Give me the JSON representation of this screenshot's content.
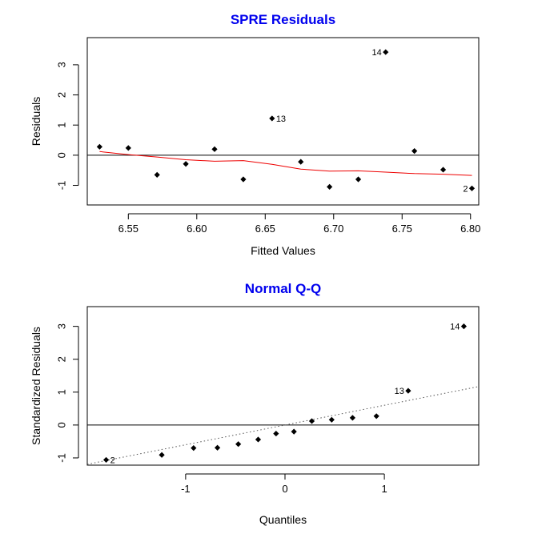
{
  "colors": {
    "title": "#0000ee",
    "smooth_line": "#ee0000",
    "points": "#000000",
    "reference_line": "#555555"
  },
  "chart_data": [
    {
      "type": "scatter",
      "title": "SPRE Residuals",
      "xlabel": "Fitted Values",
      "ylabel": "Residuals",
      "xlim": [
        6.52,
        6.806
      ],
      "ylim": [
        -1.65,
        3.9
      ],
      "xticks": [
        6.55,
        6.6,
        6.65,
        6.7,
        6.75,
        6.8
      ],
      "xtick_labels": [
        "6.55",
        "6.60",
        "6.65",
        "6.70",
        "6.75",
        "6.80"
      ],
      "yticks": [
        -1,
        0,
        1,
        2,
        3
      ],
      "ytick_labels": [
        "-1",
        "0",
        "1",
        "2",
        "3"
      ],
      "reference_line": {
        "type": "horizontal",
        "y": 0
      },
      "points": [
        {
          "x": 6.529,
          "y": 0.28
        },
        {
          "x": 6.55,
          "y": 0.24
        },
        {
          "x": 6.571,
          "y": -0.65
        },
        {
          "x": 6.592,
          "y": -0.29
        },
        {
          "x": 6.613,
          "y": 0.2
        },
        {
          "x": 6.634,
          "y": -0.8
        },
        {
          "x": 6.655,
          "y": 1.22,
          "label": "13"
        },
        {
          "x": 6.676,
          "y": -0.22
        },
        {
          "x": 6.697,
          "y": -1.05
        },
        {
          "x": 6.718,
          "y": -0.8
        },
        {
          "x": 6.738,
          "y": 3.42,
          "label": "14"
        },
        {
          "x": 6.759,
          "y": 0.14
        },
        {
          "x": 6.78,
          "y": -0.48
        },
        {
          "x": 6.801,
          "y": -1.1,
          "label": "2"
        }
      ],
      "smooth": {
        "x": [
          6.529,
          6.55,
          6.571,
          6.592,
          6.613,
          6.634,
          6.655,
          6.676,
          6.697,
          6.718,
          6.738,
          6.759,
          6.78,
          6.801
        ],
        "y": [
          0.12,
          0.02,
          -0.06,
          -0.15,
          -0.2,
          -0.18,
          -0.3,
          -0.46,
          -0.53,
          -0.52,
          -0.56,
          -0.61,
          -0.63,
          -0.67
        ]
      }
    },
    {
      "type": "scatter",
      "title": "Normal Q-Q",
      "xlabel": "Quantiles",
      "ylabel": "Standardized Residuals",
      "xlim": [
        -1.99,
        1.95
      ],
      "ylim": [
        -1.22,
        3.6
      ],
      "xticks": [
        -1,
        0,
        1
      ],
      "xtick_labels": [
        "-1",
        "0",
        "1"
      ],
      "yticks": [
        -1,
        0,
        1,
        2,
        3
      ],
      "ytick_labels": [
        "-1",
        "0",
        "1",
        "2",
        "3"
      ],
      "reference_line": {
        "type": "horizontal",
        "y": 0
      },
      "qq_line": {
        "intercept": 0.0,
        "slope": 0.6
      },
      "points": [
        {
          "x": -1.8,
          "y": -1.06,
          "label": "2"
        },
        {
          "x": -1.24,
          "y": -0.91
        },
        {
          "x": -0.92,
          "y": -0.7
        },
        {
          "x": -0.68,
          "y": -0.69
        },
        {
          "x": -0.47,
          "y": -0.58
        },
        {
          "x": -0.27,
          "y": -0.44
        },
        {
          "x": -0.09,
          "y": -0.26
        },
        {
          "x": 0.09,
          "y": -0.2
        },
        {
          "x": 0.27,
          "y": 0.12
        },
        {
          "x": 0.47,
          "y": 0.16
        },
        {
          "x": 0.68,
          "y": 0.22
        },
        {
          "x": 0.92,
          "y": 0.27
        },
        {
          "x": 1.24,
          "y": 1.04,
          "label": "13"
        },
        {
          "x": 1.8,
          "y": 3.0,
          "label": "14"
        }
      ]
    }
  ]
}
